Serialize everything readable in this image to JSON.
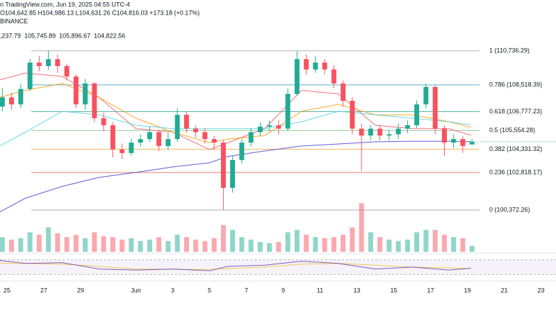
{
  "chart_data": {
    "type": "candlestick",
    "header": "n TradingView.com, Jun 19, 2025 04:55 UTC-4",
    "ohlc_text": "O104,642.85 H104,986.13 L104,631.26 C104,816.03 +173.18 (+0.17%)",
    "exchange": "BINANCE",
    "up_color": "#22ab94",
    "down_color": "#f7525f",
    "xlim": [
      -0.377,
      29.81
    ],
    "ylim": [
      99920,
      114040
    ],
    "xticks": [
      {
        "value": 0,
        "label": "25"
      },
      {
        "value": 2,
        "label": "27"
      },
      {
        "value": 4,
        "label": "29"
      },
      {
        "value": 7,
        "label": "Jun"
      },
      {
        "value": 9,
        "label": "3"
      },
      {
        "value": 11,
        "label": "5"
      },
      {
        "value": 13,
        "label": "7"
      },
      {
        "value": 15,
        "label": "9"
      },
      {
        "value": 17,
        "label": "11"
      },
      {
        "value": 19,
        "label": "13"
      },
      {
        "value": 21,
        "label": "15"
      },
      {
        "value": 23,
        "label": "17"
      },
      {
        "value": 25,
        "label": "19"
      },
      {
        "value": 27,
        "label": "21"
      },
      {
        "value": 29,
        "label": "23"
      }
    ],
    "x": [
      -0.25,
      0.25,
      0.75,
      1.25,
      1.75,
      2.25,
      2.75,
      3.25,
      3.75,
      4.25,
      4.75,
      5.25,
      5.75,
      6.25,
      6.75,
      7.25,
      7.75,
      8.25,
      8.75,
      9.25,
      9.75,
      10.25,
      10.75,
      11.25,
      11.75,
      12.25,
      12.75,
      13.25,
      13.75,
      14.25,
      14.75,
      15.25,
      15.75,
      16.25,
      16.75,
      17.25,
      17.75,
      18.25,
      18.75,
      19.25,
      19.75,
      20.25,
      20.75,
      21.25,
      21.75,
      22.25,
      22.75,
      23.25,
      23.75,
      24.25,
      24.75,
      25.25
    ],
    "open": [
      107100,
      107700,
      107250,
      108250,
      109970,
      109740,
      110190,
      109740,
      109060,
      107250,
      108610,
      106350,
      105890,
      104310,
      104080,
      104760,
      104990,
      105440,
      104540,
      104990,
      106570,
      105670,
      105440,
      104990,
      104760,
      101820,
      103630,
      104760,
      105440,
      105800,
      105890,
      105670,
      107930,
      110190,
      109520,
      109970,
      109520,
      108610,
      107480,
      105670,
      105220,
      105670,
      105220,
      105300,
      105670,
      105890,
      107250,
      108380,
      105670,
      104760,
      104990,
      104640
    ],
    "high": [
      108300,
      108000,
      108600,
      110200,
      110400,
      110736,
      110500,
      109900,
      109200,
      108900,
      108700,
      106700,
      106100,
      104700,
      105000,
      105300,
      105800,
      105600,
      105400,
      107000,
      106800,
      105900,
      105700,
      105200,
      104900,
      103900,
      105000,
      105700,
      106100,
      106200,
      106200,
      108300,
      110700,
      110500,
      110400,
      110200,
      109800,
      108800,
      107700,
      106000,
      105900,
      105900,
      105600,
      106000,
      106200,
      107500,
      108600,
      108500,
      105900,
      105300,
      105200,
      104990
    ],
    "low": [
      106800,
      106900,
      107000,
      108100,
      109400,
      109500,
      109300,
      108800,
      107000,
      106900,
      106100,
      105500,
      103800,
      103700,
      103900,
      104500,
      104800,
      104200,
      104300,
      104800,
      105400,
      105100,
      104700,
      104300,
      100372,
      101500,
      103400,
      104500,
      105200,
      105500,
      105300,
      105500,
      107800,
      109200,
      109300,
      109200,
      108300,
      107100,
      105300,
      102900,
      104900,
      104900,
      104900,
      105000,
      105400,
      105700,
      107000,
      105300,
      103900,
      104400,
      104100,
      104630
    ],
    "close": [
      107700,
      107250,
      108250,
      109970,
      109740,
      110190,
      109740,
      109060,
      107250,
      108610,
      106350,
      105890,
      104310,
      104080,
      104760,
      104990,
      105440,
      104540,
      104990,
      106570,
      105670,
      105440,
      104990,
      104760,
      101820,
      103630,
      104760,
      105440,
      105800,
      105890,
      105670,
      107930,
      110190,
      109520,
      109970,
      109520,
      108610,
      107480,
      105670,
      105220,
      105670,
      105220,
      105300,
      105670,
      105890,
      107250,
      108380,
      105670,
      104760,
      104990,
      104540,
      104816
    ],
    "volume": [
      30,
      25,
      28,
      40,
      35,
      50,
      38,
      30,
      35,
      28,
      40,
      32,
      30,
      25,
      28,
      22,
      25,
      30,
      22,
      35,
      30,
      25,
      22,
      28,
      55,
      45,
      30,
      25,
      20,
      18,
      20,
      40,
      45,
      35,
      30,
      28,
      30,
      35,
      50,
      100,
      40,
      30,
      25,
      22,
      25,
      40,
      45,
      45,
      35,
      30,
      28,
      12
    ],
    "vlim": [
      0,
      100
    ],
    "ma_x": [
      -0.4,
      1,
      3,
      5,
      7,
      9,
      11,
      12,
      14,
      16,
      18,
      20,
      22,
      24,
      25.2
    ],
    "ma_series": [
      {
        "label": ",237.79",
        "color": "#f7525f",
        "values": [
          108840,
          109290,
          109060,
          107700,
          105670,
          105440,
          104310,
          104760,
          105670,
          108160,
          107930,
          105890,
          105670,
          105670,
          105238
        ]
      },
      {
        "label": "105,745.89",
        "color": "#ff9800",
        "values": [
          107700,
          108160,
          108610,
          107700,
          106350,
          105440,
          104760,
          104990,
          105220,
          106800,
          107250,
          106570,
          106570,
          106120,
          105746
        ]
      },
      {
        "label": "105,896.67",
        "color": "#4dd0e1",
        "values": [
          104540,
          105440,
          106800,
          106570,
          105890,
          105670,
          105670,
          105670,
          105670,
          106120,
          106800,
          106570,
          106350,
          106120,
          105897
        ]
      },
      {
        "label": "104,822.56",
        "color": "#3f3fd6",
        "values": [
          100240,
          101140,
          101910,
          102500,
          102820,
          103180,
          103450,
          103860,
          104220,
          104540,
          104670,
          104810,
          104850,
          104850,
          104823
        ]
      }
    ],
    "fib": [
      {
        "label": "1 (110,736.29)",
        "value": 110736.29,
        "color": "#9598a1"
      },
      {
        "label": "0.786 (108,518.39)",
        "value": 108518.39,
        "color": "#2a9dba"
      },
      {
        "label": "0.618 (106,777.23)",
        "value": 106777.23,
        "color": "#26a69a"
      },
      {
        "label": "0.5 (105,554.28)",
        "value": 105554.28,
        "color": "#81c784"
      },
      {
        "label": "0.382 (104,331.32)",
        "value": 104331.32,
        "color": "#f0a73a"
      },
      {
        "label": "0.236 (102,818.17)",
        "value": 102818.17,
        "color": "#ef5350"
      },
      {
        "label": "0 (100,372.26)",
        "value": 100372.26,
        "color": "#9598a1"
      }
    ],
    "rsi": {
      "color": "#7e57c2",
      "ma_color": "#f5c84b",
      "lim": [
        20,
        80
      ],
      "bands": [
        30,
        70
      ],
      "values": [
        68,
        60,
        62,
        45,
        42,
        45,
        40,
        52,
        55,
        66,
        60,
        45,
        50,
        42,
        47
      ],
      "ma": [
        60,
        60,
        58,
        52,
        45,
        44,
        44,
        46,
        50,
        58,
        60,
        55,
        50,
        48,
        46
      ]
    }
  }
}
